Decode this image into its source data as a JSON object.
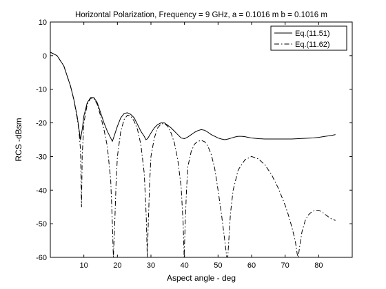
{
  "chart_data": {
    "type": "line",
    "title": "Horizontal Polarization,  Frequency = 9  GHz,   a = 0.1016 m  b = 0.1016 m",
    "xlabel": "Aspect angle - deg",
    "ylabel": "RCS -dBsm",
    "xlim": [
      0,
      90
    ],
    "ylim": [
      -60,
      10
    ],
    "xticks": [
      10,
      20,
      30,
      40,
      50,
      60,
      70,
      80
    ],
    "yticks": [
      10,
      0,
      -10,
      -20,
      -30,
      -40,
      -50,
      -60
    ],
    "grid": false,
    "legend_position": "top-right",
    "series": [
      {
        "name": "Eq.(11.51)",
        "style": "solid",
        "x": [
          0,
          2,
          4,
          6,
          7,
          8,
          8.5,
          9,
          9.5,
          10,
          11,
          12,
          13,
          14,
          15,
          16,
          17,
          18,
          18.5,
          19,
          20,
          21,
          22,
          23,
          24,
          25,
          26,
          27,
          28,
          28.5,
          29,
          30,
          31,
          32,
          33,
          34,
          35,
          36,
          37,
          38,
          39,
          40,
          41,
          42,
          43,
          44,
          45,
          46,
          47,
          48,
          49,
          50,
          51,
          52,
          53,
          54,
          55,
          56,
          57,
          58,
          59,
          60,
          62,
          64,
          66,
          68,
          70,
          72,
          74,
          76,
          78,
          80,
          82,
          84,
          85
        ],
        "y": [
          1,
          0,
          -3,
          -9,
          -13,
          -18,
          -21.5,
          -25,
          -22,
          -18,
          -14,
          -12.5,
          -12.5,
          -14,
          -17,
          -20,
          -22.5,
          -24.5,
          -25.5,
          -24,
          -21,
          -18.5,
          -17.2,
          -17,
          -17.5,
          -18.5,
          -20.5,
          -22.5,
          -24,
          -25,
          -24.7,
          -23,
          -21.5,
          -20.5,
          -20,
          -20,
          -20.7,
          -21.5,
          -22.5,
          -23.5,
          -24.5,
          -24.7,
          -24.2,
          -23.5,
          -22.8,
          -22.3,
          -22,
          -22.2,
          -22.8,
          -23.5,
          -24,
          -24.5,
          -24.8,
          -25,
          -24.8,
          -24.5,
          -24.2,
          -24,
          -24,
          -24.1,
          -24.3,
          -24.5,
          -24.7,
          -24.8,
          -24.8,
          -24.8,
          -24.8,
          -24.8,
          -24.7,
          -24.6,
          -24.5,
          -24.3,
          -24,
          -23.7,
          -23.5
        ]
      },
      {
        "name": "Eq.(11.62)",
        "style": "dashdot",
        "x": [
          0,
          2,
          4,
          6,
          7,
          8,
          8.5,
          9,
          9.3,
          9.5,
          10,
          11,
          12,
          13,
          14,
          15,
          16,
          17,
          18,
          18.5,
          18.8,
          19.2,
          19.6,
          20,
          21,
          22,
          23,
          24,
          25,
          26,
          27,
          28,
          28.6,
          28.9,
          29.2,
          29.6,
          30,
          31,
          32,
          33,
          34,
          35,
          36,
          37,
          38,
          39,
          39.6,
          39.9,
          40.2,
          40.6,
          41,
          42,
          43,
          44,
          45,
          46,
          47,
          48,
          49,
          50,
          51,
          52,
          52.6,
          52.9,
          53.2,
          53.7,
          54.5,
          56,
          58,
          60,
          62,
          64,
          66,
          68,
          70,
          71,
          72,
          73,
          73.6,
          73.9,
          74.3,
          75,
          76,
          77,
          78,
          79,
          80,
          81,
          82,
          83,
          84,
          85
        ],
        "y": [
          1,
          0,
          -3,
          -9,
          -13,
          -18.5,
          -22,
          -28,
          -45,
          -30,
          -20,
          -14.5,
          -12.7,
          -12.7,
          -14.5,
          -18,
          -22,
          -27,
          -37,
          -50,
          -60,
          -50,
          -38,
          -30,
          -22.5,
          -19,
          -17.7,
          -18,
          -19.5,
          -22,
          -26.5,
          -35,
          -48,
          -60,
          -50,
          -38,
          -30,
          -24.5,
          -21.5,
          -20.3,
          -20.2,
          -21,
          -23,
          -26,
          -31,
          -39,
          -50,
          -60,
          -50,
          -40,
          -33,
          -28.5,
          -26.3,
          -25.5,
          -25.2,
          -25.6,
          -27,
          -29.5,
          -33.5,
          -40,
          -47,
          -55,
          -60,
          -60,
          -55,
          -47,
          -40,
          -34,
          -31,
          -30,
          -30.7,
          -32.5,
          -35.5,
          -39.5,
          -44.5,
          -47.5,
          -51,
          -55,
          -59,
          -60,
          -57,
          -52.5,
          -49,
          -47.3,
          -46.4,
          -46,
          -46,
          -46.5,
          -47.3,
          -48,
          -48.7,
          -49
        ]
      }
    ]
  }
}
